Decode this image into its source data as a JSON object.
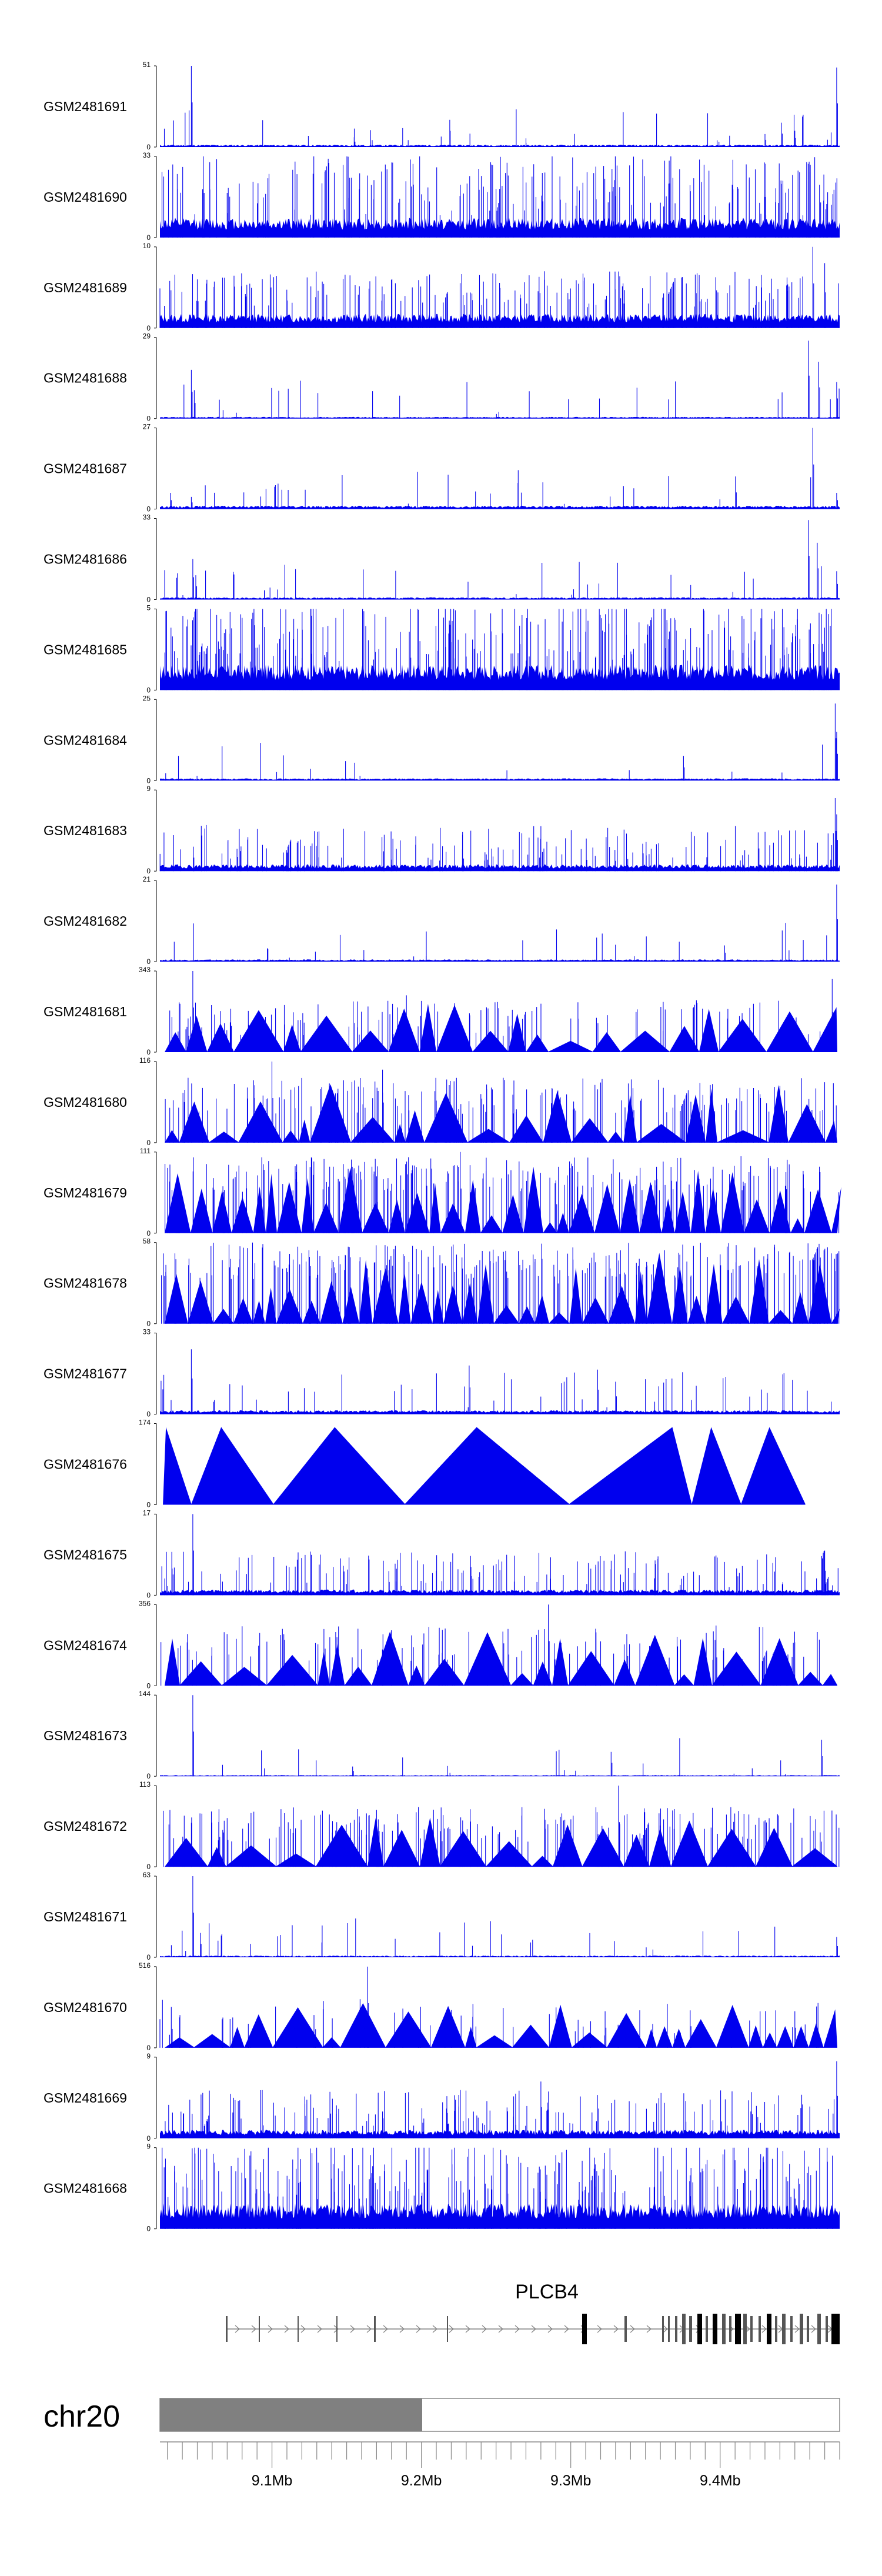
{
  "chart_data": {
    "type": "area",
    "genomic_axis": {
      "chromosome": "chr20",
      "tick_labels": [
        "9.1Mb",
        "9.2Mb",
        "9.3Mb",
        "9.4Mb"
      ],
      "tick_values_mb": [
        9.1,
        9.2,
        9.3,
        9.4
      ],
      "xlim_mb": [
        9.025,
        9.48
      ]
    },
    "gene": {
      "name": "PLCB4",
      "strand": "+"
    },
    "series_color": "#0000ee",
    "tracks": [
      {
        "name": "GSM2481691",
        "ymax": 51,
        "style": "spiky",
        "seed": 11,
        "base": 0.04,
        "spike_rate": 0.05,
        "peaks": [
          [
            9.046,
            1.0
          ],
          [
            9.155,
            0.12
          ],
          [
            9.43,
            0.16
          ],
          [
            9.441,
            0.3
          ],
          [
            9.45,
            0.2
          ],
          [
            9.478,
            0.98
          ]
        ]
      },
      {
        "name": "GSM2481690",
        "ymax": 33,
        "style": "comb",
        "seed": 12,
        "base": 0.27,
        "spike_rate": 0.35,
        "peaks": [
          [
            9.054,
            1.0
          ],
          [
            9.07,
            0.55
          ],
          [
            9.25,
            0.6
          ],
          [
            9.43,
            0.5
          ]
        ]
      },
      {
        "name": "GSM2481689",
        "ymax": 10,
        "style": "dense",
        "seed": 13,
        "base": 0.25,
        "spike_rate": 0.3,
        "peaks": [
          [
            9.05,
            0.6
          ],
          [
            9.335,
            0.55
          ],
          [
            9.462,
            1.0
          ],
          [
            9.47,
            0.8
          ]
        ]
      },
      {
        "name": "GSM2481688",
        "ymax": 29,
        "style": "spiky",
        "seed": 14,
        "base": 0.03,
        "spike_rate": 0.04,
        "peaks": [
          [
            9.046,
            0.6
          ],
          [
            9.048,
            0.35
          ],
          [
            9.459,
            0.96
          ],
          [
            9.466,
            0.7
          ],
          [
            9.478,
            0.45
          ]
        ]
      },
      {
        "name": "GSM2481687",
        "ymax": 27,
        "style": "spiky",
        "seed": 15,
        "base": 0.06,
        "spike_rate": 0.05,
        "peaks": [
          [
            9.032,
            0.2
          ],
          [
            9.046,
            0.15
          ],
          [
            9.462,
            1.0
          ],
          [
            9.478,
            0.2
          ]
        ]
      },
      {
        "name": "GSM2481686",
        "ymax": 33,
        "style": "spiky",
        "seed": 16,
        "base": 0.04,
        "spike_rate": 0.05,
        "peaks": [
          [
            9.047,
            0.5
          ],
          [
            9.049,
            0.3
          ],
          [
            9.459,
            0.98
          ],
          [
            9.465,
            0.7
          ],
          [
            9.478,
            0.35
          ]
        ]
      },
      {
        "name": "GSM2481685",
        "ymax": 5,
        "style": "comb",
        "seed": 17,
        "base": 0.35,
        "spike_rate": 0.45,
        "peaks": []
      },
      {
        "name": "GSM2481684",
        "ymax": 25,
        "style": "spiky",
        "seed": 18,
        "base": 0.04,
        "spike_rate": 0.03,
        "peaks": [
          [
            9.477,
            0.95
          ],
          [
            9.478,
            0.6
          ]
        ]
      },
      {
        "name": "GSM2481683",
        "ymax": 9,
        "style": "dense",
        "seed": 19,
        "base": 0.12,
        "spike_rate": 0.25,
        "peaks": [
          [
            9.477,
            0.9
          ],
          [
            9.478,
            0.7
          ]
        ]
      },
      {
        "name": "GSM2481682",
        "ymax": 21,
        "style": "spiky",
        "seed": 20,
        "base": 0.04,
        "spike_rate": 0.04,
        "peaks": [
          [
            9.403,
            0.2
          ],
          [
            9.478,
            0.95
          ]
        ]
      },
      {
        "name": "GSM2481681",
        "ymax": 343,
        "style": "triangle",
        "seed": 21,
        "base": 0.2,
        "spike_rate": 0.2,
        "peaks": [
          [
            9.047,
            1.0
          ],
          [
            9.19,
            0.7
          ],
          [
            9.475,
            0.9
          ]
        ]
      },
      {
        "name": "GSM2481680",
        "ymax": 116,
        "style": "triangle",
        "seed": 22,
        "base": 0.35,
        "spike_rate": 0.3,
        "peaks": [
          [
            9.1,
            1.0
          ],
          [
            9.174,
            0.9
          ],
          [
            9.44,
            0.7
          ]
        ]
      },
      {
        "name": "GSM2481679",
        "ymax": 111,
        "style": "triangle",
        "seed": 23,
        "base": 0.5,
        "spike_rate": 0.35,
        "peaks": [
          [
            9.226,
            1.0
          ],
          [
            9.17,
            0.7
          ],
          [
            9.29,
            0.65
          ]
        ]
      },
      {
        "name": "GSM2481678",
        "ymax": 58,
        "style": "triangle",
        "seed": 24,
        "base": 0.55,
        "spike_rate": 0.4,
        "peaks": [
          [
            9.087,
            1.0
          ],
          [
            9.291,
            0.9
          ],
          [
            9.373,
            0.85
          ]
        ]
      },
      {
        "name": "GSM2481677",
        "ymax": 33,
        "style": "spiky",
        "seed": 25,
        "base": 0.07,
        "spike_rate": 0.08,
        "peaks": [
          [
            9.046,
            0.8
          ],
          [
            9.232,
            0.6
          ],
          [
            9.318,
            0.55
          ],
          [
            9.33,
            0.4
          ]
        ]
      },
      {
        "name": "GSM2481676",
        "ymax": 174,
        "style": "big",
        "seed": 26,
        "base": 0.9,
        "spike_rate": 0.0,
        "peaks": []
      },
      {
        "name": "GSM2481675",
        "ymax": 17,
        "style": "dense",
        "seed": 27,
        "base": 0.1,
        "spike_rate": 0.25,
        "peaks": [
          [
            9.047,
            1.0
          ],
          [
            9.47,
            0.55
          ]
        ]
      },
      {
        "name": "GSM2481674",
        "ymax": 356,
        "style": "triangle",
        "seed": 28,
        "base": 0.3,
        "spike_rate": 0.2,
        "peaks": [
          [
            9.285,
            1.0
          ],
          [
            9.258,
            0.7
          ]
        ]
      },
      {
        "name": "GSM2481673",
        "ymax": 144,
        "style": "spiky",
        "seed": 29,
        "base": 0.02,
        "spike_rate": 0.03,
        "peaks": [
          [
            9.047,
            1.0
          ],
          [
            9.154,
            0.12
          ],
          [
            9.327,
            0.3
          ],
          [
            9.468,
            0.45
          ]
        ]
      },
      {
        "name": "GSM2481672",
        "ymax": 113,
        "style": "triangle",
        "seed": 30,
        "base": 0.3,
        "spike_rate": 0.3,
        "peaks": [
          [
            9.332,
            1.0
          ],
          [
            9.17,
            0.7
          ],
          [
            9.07,
            0.6
          ]
        ]
      },
      {
        "name": "GSM2481671",
        "ymax": 63,
        "style": "spiky",
        "seed": 31,
        "base": 0.03,
        "spike_rate": 0.05,
        "peaks": [
          [
            9.047,
            1.0
          ],
          [
            9.052,
            0.3
          ],
          [
            9.478,
            0.25
          ]
        ]
      },
      {
        "name": "GSM2481670",
        "ymax": 516,
        "style": "triangle",
        "seed": 32,
        "base": 0.15,
        "spike_rate": 0.1,
        "peaks": [
          [
            9.164,
            1.0
          ],
          [
            9.323,
            0.45
          ],
          [
            9.45,
            0.45
          ]
        ]
      },
      {
        "name": "GSM2481669",
        "ymax": 9,
        "style": "dense",
        "seed": 33,
        "base": 0.15,
        "spike_rate": 0.25,
        "peaks": [
          [
            9.478,
            0.95
          ],
          [
            9.28,
            0.7
          ]
        ]
      },
      {
        "name": "GSM2481668",
        "ymax": 9,
        "style": "comb",
        "seed": 34,
        "base": 0.35,
        "spike_rate": 0.4,
        "peaks": []
      }
    ]
  }
}
